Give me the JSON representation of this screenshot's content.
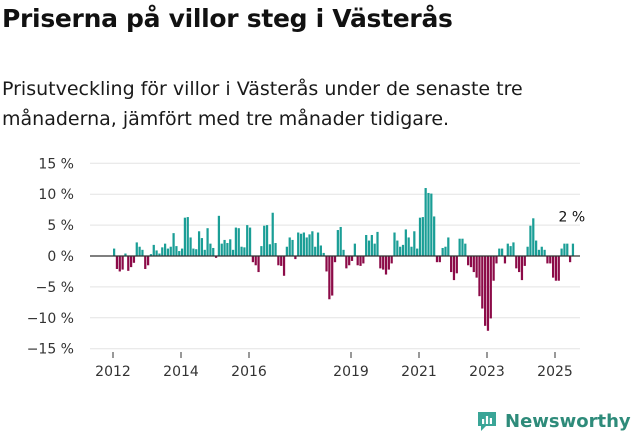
{
  "header": {
    "title": "Priserna på villor steg i Västerås",
    "subtitle": "Prisutveckling för villor i Västerås under de senaste tre månaderna, jämfört med tre månader tidigare."
  },
  "brand": {
    "name": "Newsworthy",
    "color": "#2e9c8e"
  },
  "chart_data": {
    "type": "bar",
    "title": "Priserna på villor steg i Västerås",
    "xlabel": "",
    "ylabel": "",
    "ylim": [
      -15,
      15
    ],
    "y_ticks": [
      15,
      10,
      5,
      0,
      -5,
      -10,
      -15
    ],
    "y_tick_labels": [
      "15 %",
      "10 %",
      "5 %",
      "0 %",
      "−5 %",
      "−10 %",
      "−15 %"
    ],
    "x_ticks": [
      2012,
      2014,
      2016,
      2019,
      2021,
      2023,
      2025
    ],
    "x_start": 2012.0,
    "period": 0.0833,
    "positive_color": "#1a9e96",
    "negative_color": "#8c0b48",
    "annotation": "2 %",
    "values": [
      1.2,
      -2.1,
      -2.5,
      -2.2,
      0.4,
      -2.4,
      -1.8,
      -1.1,
      2.2,
      1.5,
      1.0,
      -2.1,
      -1.5,
      0.3,
      1.8,
      0.9,
      0.4,
      1.4,
      2.0,
      1.2,
      1.5,
      3.7,
      1.6,
      0.8,
      1.2,
      6.2,
      6.3,
      3.0,
      1.2,
      1.1,
      4.0,
      2.9,
      1.0,
      4.5,
      2.0,
      1.3,
      -0.3,
      6.5,
      2.0,
      2.6,
      2.1,
      2.7,
      1.0,
      4.6,
      4.5,
      1.5,
      1.4,
      5.0,
      4.6,
      -1.0,
      -1.5,
      -2.6,
      1.6,
      4.9,
      5.0,
      1.9,
      7.0,
      2.1,
      -1.5,
      -1.6,
      -3.2,
      1.5,
      3.0,
      2.6,
      -0.5,
      3.8,
      3.6,
      3.8,
      3.0,
      3.5,
      4.0,
      1.5,
      3.8,
      1.7,
      0.5,
      -2.5,
      -7.0,
      -6.4,
      -1.0,
      4.2,
      4.7,
      1.0,
      -2.0,
      -1.5,
      -0.8,
      2.0,
      -1.5,
      -1.6,
      -1.2,
      3.4,
      2.5,
      3.4,
      2.0,
      3.9,
      -2.0,
      -2.2,
      -3.0,
      -2.2,
      -1.2,
      3.8,
      2.5,
      1.5,
      1.8,
      4.3,
      3.0,
      1.5,
      4.0,
      1.2,
      6.2,
      6.3,
      11.0,
      10.2,
      10.1,
      6.4,
      -1.0,
      -1.0,
      1.3,
      1.5,
      3.0,
      -2.6,
      -3.9,
      -2.8,
      2.8,
      2.8,
      2.0,
      -1.5,
      -1.8,
      -2.6,
      -3.5,
      -6.5,
      -8.5,
      -11.3,
      -12.1,
      -10.1,
      -4.0,
      -1.2,
      1.2,
      1.2,
      -1.2,
      2.0,
      1.6,
      2.2,
      -2.0,
      -2.6,
      -3.9,
      -1.6,
      1.5,
      4.9,
      6.1,
      2.5,
      1.0,
      1.5,
      1.0,
      -1.2,
      -1.2,
      -3.5,
      -4.0,
      -4.0,
      1.2,
      2.0,
      2.0,
      -1.0,
      2.0
    ]
  }
}
